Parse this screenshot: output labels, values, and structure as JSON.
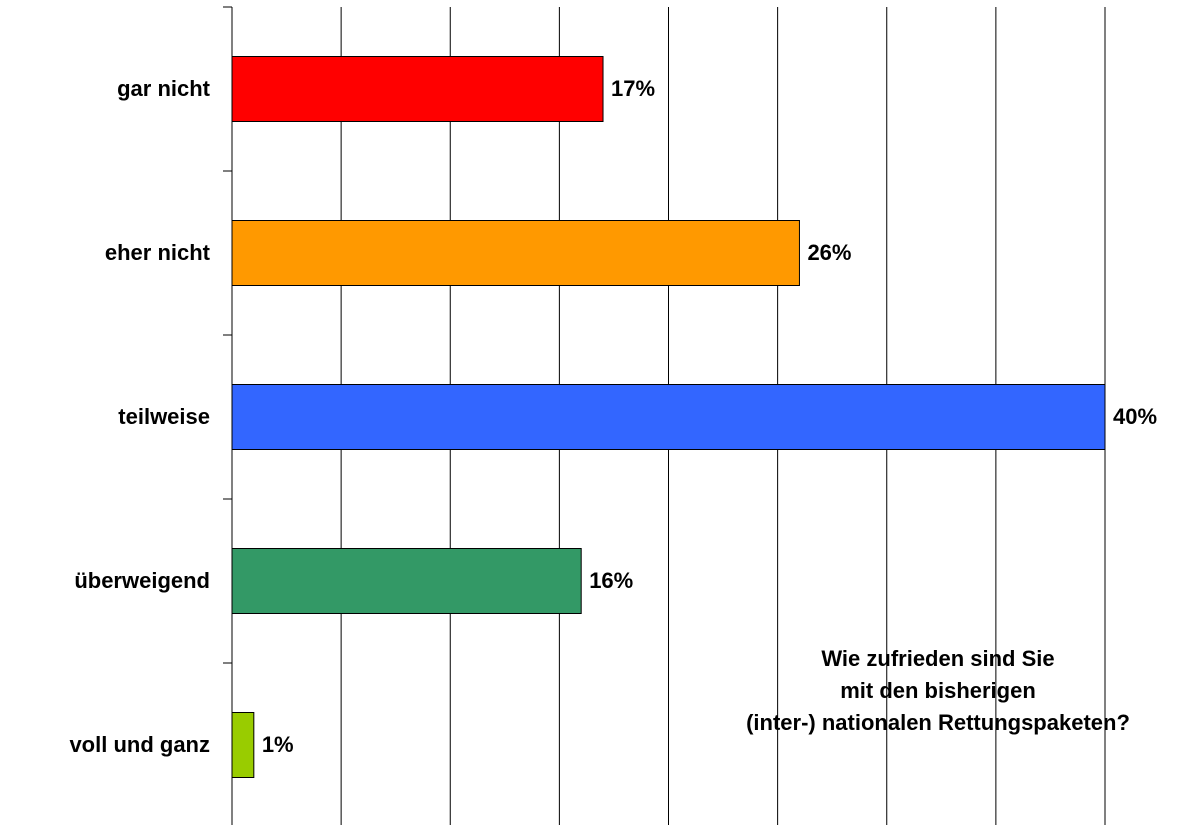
{
  "chart_data": {
    "type": "bar",
    "orientation": "horizontal",
    "title": [
      "Wie zufrieden sind Sie",
      "mit den bisherigen",
      "(inter-) nationalen Rettungspaketen?"
    ],
    "categories": [
      "gar nicht",
      "eher nicht",
      "teilweise",
      "überweigend",
      "voll und ganz"
    ],
    "values": [
      17,
      26,
      40,
      16,
      1
    ],
    "value_labels": [
      "17%",
      "26%",
      "40%",
      "16%",
      "1%"
    ],
    "colors": [
      "#ff0000",
      "#ff9900",
      "#3366ff",
      "#339966",
      "#99cc00"
    ],
    "xlim": [
      0,
      40
    ],
    "xticks": [
      0,
      5,
      10,
      15,
      20,
      25,
      30,
      35,
      40
    ],
    "grid": true
  }
}
